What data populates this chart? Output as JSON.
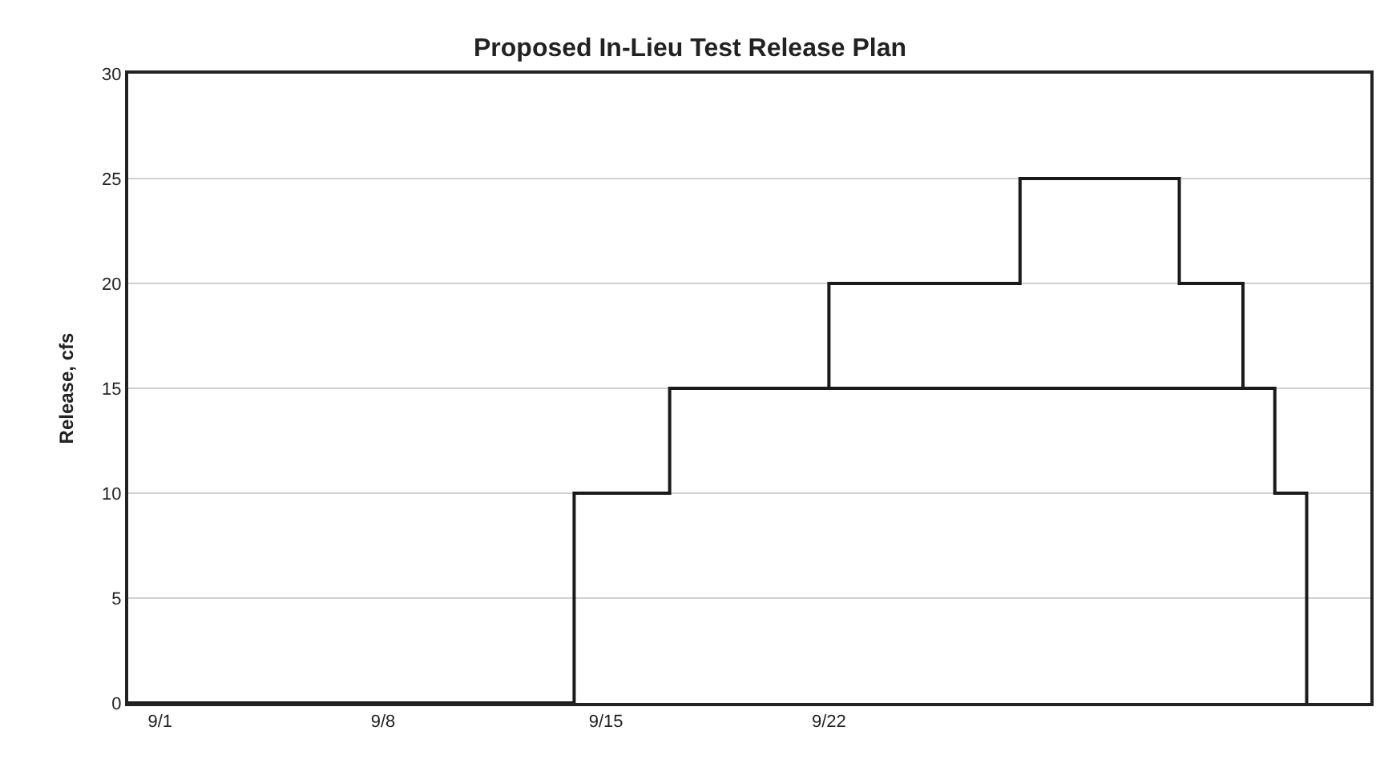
{
  "chart_data": {
    "type": "step",
    "title": "Proposed In-Lieu Test Release Plan",
    "ylabel": "Release, cfs",
    "series": [
      {
        "color": "#1a1a1a",
        "x": [
          "--08-31",
          "--09-14",
          "--09-17",
          "--09-22",
          "--09-28",
          "--10-03",
          "--10-05",
          "--10-06",
          "--10-07"
        ],
        "values": [
          0,
          10,
          15,
          20,
          25,
          20,
          15,
          10,
          0
        ]
      },
      {
        "type": "line",
        "color": "#1a1a1a",
        "x": [
          "--09-22",
          "--10-05"
        ],
        "values": [
          15,
          15
        ]
      }
    ],
    "xlim": [
      "--08-31",
      "--10-09"
    ],
    "xticks": [
      {
        "value": "--09-01",
        "label": "9/1"
      },
      {
        "value": "--09-08",
        "label": "9/8"
      },
      {
        "value": "--09-15",
        "label": "9/15"
      },
      {
        "value": "--09-22",
        "label": "9/22"
      }
    ],
    "ylim": [
      0,
      30
    ],
    "yticks": [
      0,
      5,
      10,
      15,
      20,
      25,
      30
    ],
    "grid": "y",
    "marker": "none",
    "line_style": "solid"
  }
}
